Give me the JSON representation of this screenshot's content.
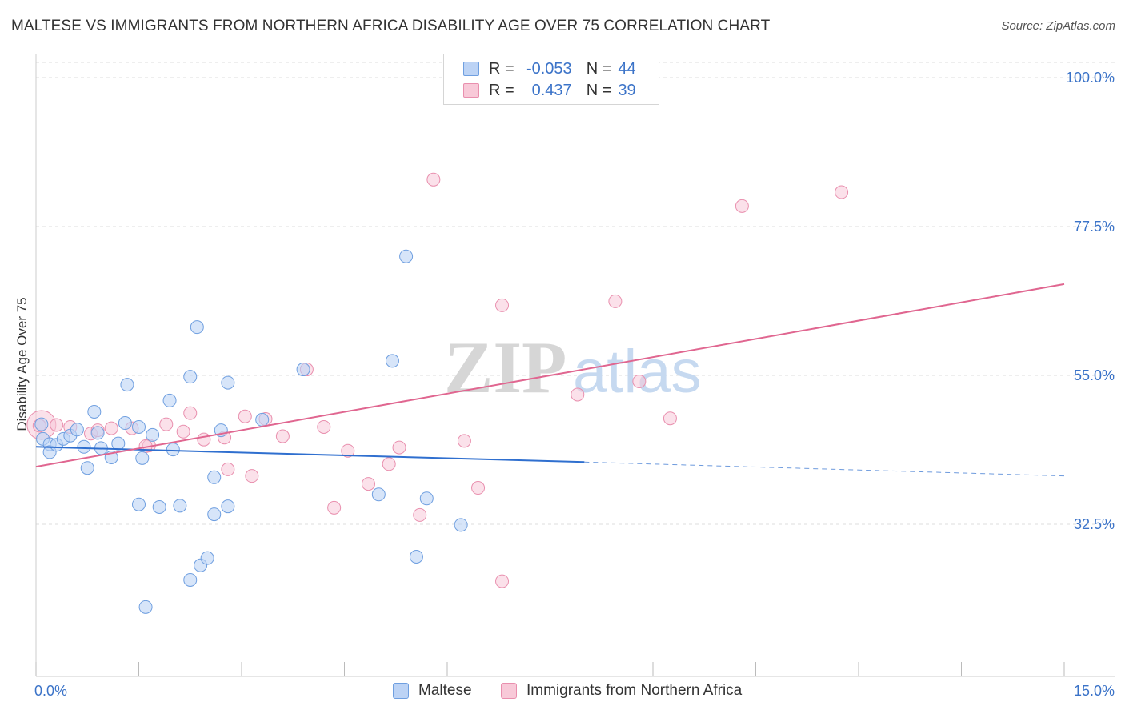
{
  "title": "MALTESE VS IMMIGRANTS FROM NORTHERN AFRICA DISABILITY AGE OVER 75 CORRELATION CHART",
  "source": "Source: ZipAtlas.com",
  "watermark": {
    "zip": "ZIP",
    "atlas": "atlas"
  },
  "legend": {
    "rows": [
      {
        "r_label": "R =",
        "r_value": "-0.053",
        "n_label": "N =",
        "n_value": "44"
      },
      {
        "r_label": "R =",
        "r_value": "0.437",
        "n_label": "N =",
        "n_value": "39"
      }
    ]
  },
  "bottom_legend": {
    "series1": "Maltese",
    "series2": "Immigrants from Northern Africa"
  },
  "colors": {
    "blue_fill": "#bcd3f5",
    "blue_stroke": "#6f9fe0",
    "blue_line": "#2f6fcf",
    "pink_fill": "#f8c9d8",
    "pink_stroke": "#e98fae",
    "pink_line": "#e06690",
    "tick_label": "#3b73c8",
    "grid": "#dddddd"
  },
  "chart_data": {
    "type": "scatter",
    "title": "MALTESE VS IMMIGRANTS FROM NORTHERN AFRICA DISABILITY AGE OVER 75 CORRELATION CHART",
    "xlabel": "",
    "ylabel": "Disability Age Over 75",
    "xlim": [
      0,
      15
    ],
    "ylim": [
      12,
      103
    ],
    "x_tick_labels": [
      "0.0%",
      "15.0%"
    ],
    "y_ticks": [
      32.5,
      55.0,
      77.5,
      100.0
    ],
    "y_tick_labels": [
      "32.5%",
      "55.0%",
      "77.5%",
      "100.0%"
    ],
    "grid": true,
    "legend_position": "top-center",
    "series": [
      {
        "name": "Maltese",
        "R": -0.053,
        "N": 44,
        "points": [
          [
            0.08,
            47.6
          ],
          [
            0.1,
            45.4
          ],
          [
            0.2,
            44.6
          ],
          [
            0.2,
            43.4
          ],
          [
            0.3,
            44.5
          ],
          [
            0.4,
            45.4
          ],
          [
            0.5,
            45.9
          ],
          [
            0.6,
            46.8
          ],
          [
            0.7,
            44.2
          ],
          [
            0.75,
            41.0
          ],
          [
            0.85,
            49.5
          ],
          [
            0.9,
            46.3
          ],
          [
            0.95,
            44.0
          ],
          [
            1.1,
            42.6
          ],
          [
            1.2,
            44.7
          ],
          [
            1.3,
            47.8
          ],
          [
            1.33,
            53.6
          ],
          [
            1.5,
            47.2
          ],
          [
            1.5,
            35.5
          ],
          [
            1.55,
            42.5
          ],
          [
            1.6,
            20.0
          ],
          [
            1.7,
            46.0
          ],
          [
            1.8,
            35.1
          ],
          [
            1.95,
            51.2
          ],
          [
            2.0,
            43.8
          ],
          [
            2.1,
            35.3
          ],
          [
            2.25,
            24.1
          ],
          [
            2.25,
            54.8
          ],
          [
            2.35,
            62.3
          ],
          [
            2.4,
            26.3
          ],
          [
            2.5,
            27.4
          ],
          [
            2.6,
            34.0
          ],
          [
            2.6,
            39.6
          ],
          [
            2.7,
            46.7
          ],
          [
            2.8,
            35.2
          ],
          [
            2.8,
            53.9
          ],
          [
            3.3,
            48.3
          ],
          [
            3.9,
            55.9
          ],
          [
            5.2,
            57.2
          ],
          [
            5.0,
            37.0
          ],
          [
            5.4,
            73.0
          ],
          [
            5.55,
            27.6
          ],
          [
            5.7,
            36.4
          ],
          [
            6.2,
            32.4
          ]
        ],
        "trend": {
          "x0": 0,
          "y0": 44.2,
          "x1": 8.0,
          "y1": 41.9,
          "dashed_to_x": 15,
          "dashed_to_y": 39.8
        }
      },
      {
        "name": "Immigrants from Northern Africa",
        "R": 0.437,
        "N": 39,
        "points": [
          [
            0.08,
            47.5
          ],
          [
            0.3,
            47.5
          ],
          [
            0.5,
            47.2
          ],
          [
            0.8,
            46.2
          ],
          [
            0.9,
            46.7
          ],
          [
            1.1,
            47.0
          ],
          [
            1.4,
            47.0
          ],
          [
            1.65,
            44.4
          ],
          [
            1.9,
            47.6
          ],
          [
            2.15,
            46.5
          ],
          [
            2.25,
            49.3
          ],
          [
            2.45,
            45.3
          ],
          [
            2.75,
            45.6
          ],
          [
            2.8,
            40.8
          ],
          [
            3.05,
            48.8
          ],
          [
            3.15,
            39.8
          ],
          [
            3.35,
            48.4
          ],
          [
            3.6,
            45.8
          ],
          [
            3.95,
            55.9
          ],
          [
            4.2,
            47.2
          ],
          [
            4.35,
            35.0
          ],
          [
            4.55,
            43.6
          ],
          [
            4.85,
            38.6
          ],
          [
            5.15,
            41.6
          ],
          [
            5.3,
            44.1
          ],
          [
            5.6,
            33.9
          ],
          [
            5.8,
            84.6
          ],
          [
            6.25,
            45.1
          ],
          [
            6.45,
            38.0
          ],
          [
            6.8,
            65.6
          ],
          [
            6.8,
            23.9
          ],
          [
            7.9,
            52.1
          ],
          [
            8.45,
            66.2
          ],
          [
            8.8,
            54.1
          ],
          [
            9.25,
            48.5
          ],
          [
            10.3,
            80.6
          ],
          [
            11.75,
            82.7
          ],
          [
            0.05,
            47.4
          ],
          [
            1.6,
            44.3
          ]
        ],
        "trend": {
          "x0": 0,
          "y0": 41.2,
          "x1": 15,
          "y1": 68.8
        }
      }
    ]
  }
}
